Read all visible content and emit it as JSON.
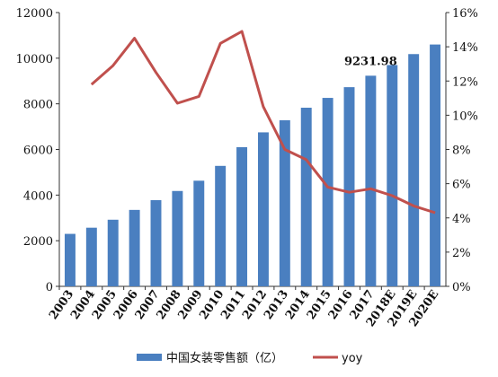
{
  "chart_data": {
    "type": "bar",
    "categories": [
      "2003",
      "2004",
      "2005",
      "2006",
      "2007",
      "2008",
      "2009",
      "2010",
      "2011",
      "2012",
      "2013",
      "2014",
      "2015",
      "2016",
      "2017",
      "2018E",
      "2019E",
      "2020E"
    ],
    "series": [
      {
        "name": "中国女装零售额（亿）",
        "type": "bar",
        "axis": "left",
        "color": "#4a7fc0",
        "values": [
          2300,
          2570,
          2920,
          3350,
          3780,
          4180,
          4630,
          5280,
          6100,
          6750,
          7280,
          7830,
          8260,
          8730,
          9231.98,
          9700,
          10180,
          10600
        ]
      },
      {
        "name": "yoy",
        "type": "line",
        "axis": "right",
        "color": "#c0504d",
        "values": [
          null,
          11.8,
          12.9,
          14.5,
          12.5,
          10.7,
          11.1,
          14.2,
          14.9,
          10.5,
          8.0,
          7.4,
          5.8,
          5.5,
          5.7,
          5.3,
          4.7,
          4.3
        ]
      }
    ],
    "ylim_left": [
      0,
      12000
    ],
    "yticks_left": [
      "0",
      "2000",
      "4000",
      "6000",
      "8000",
      "10000",
      "12000"
    ],
    "ylim_right": [
      0,
      16
    ],
    "yticks_right": [
      "0%",
      "2%",
      "4%",
      "6%",
      "8%",
      "10%",
      "12%",
      "14%",
      "16%"
    ],
    "annotation": {
      "text": "9231.98",
      "category": "2017"
    },
    "legend": {
      "position": "bottom",
      "items": [
        "中国女装零售额（亿）",
        "yoy"
      ]
    },
    "grid": false
  }
}
